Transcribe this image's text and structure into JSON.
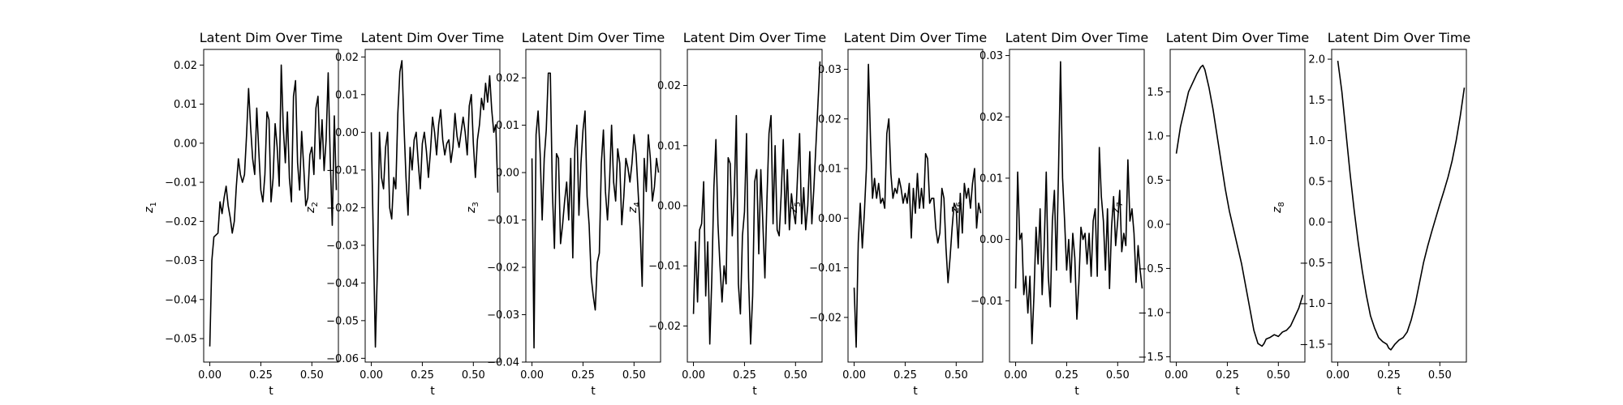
{
  "chart_data": [
    {
      "type": "line",
      "title": "Latent Dim Over Time",
      "xlabel": "t",
      "ylabel": "z_1",
      "ylabel_base": "z",
      "ylabel_sub": "1",
      "xlim": [
        -0.03,
        0.63
      ],
      "ylim": [
        -0.056,
        0.024
      ],
      "xticks": [
        0.0,
        0.25,
        0.5
      ],
      "xtick_labels": [
        "0.00",
        "0.25",
        "0.50"
      ],
      "yticks": [
        -0.05,
        -0.04,
        -0.03,
        -0.02,
        -0.01,
        0.0,
        0.01,
        0.02
      ],
      "ytick_labels": [
        "−0.05",
        "−0.04",
        "−0.03",
        "−0.02",
        "−0.01",
        "0.00",
        "0.01",
        "0.02"
      ],
      "grid": false,
      "color": "#000000",
      "x": [
        0.0,
        0.01,
        0.02,
        0.04,
        0.05,
        0.06,
        0.07,
        0.08,
        0.09,
        0.1,
        0.11,
        0.12,
        0.13,
        0.14,
        0.15,
        0.16,
        0.17,
        0.18,
        0.19,
        0.2,
        0.21,
        0.22,
        0.23,
        0.24,
        0.25,
        0.26,
        0.27,
        0.28,
        0.29,
        0.3,
        0.31,
        0.32,
        0.33,
        0.34,
        0.35,
        0.36,
        0.37,
        0.38,
        0.39,
        0.4,
        0.41,
        0.42,
        0.43,
        0.44,
        0.45,
        0.46,
        0.47,
        0.48,
        0.49,
        0.5,
        0.51,
        0.52,
        0.53,
        0.54,
        0.55,
        0.56,
        0.57,
        0.58,
        0.59,
        0.6,
        0.61,
        0.62
      ],
      "y": [
        -0.052,
        -0.03,
        -0.024,
        -0.023,
        -0.015,
        -0.018,
        -0.014,
        -0.011,
        -0.016,
        -0.019,
        -0.023,
        -0.02,
        -0.011,
        -0.004,
        -0.008,
        -0.01,
        -0.008,
        0.002,
        0.014,
        0.004,
        -0.004,
        -0.008,
        0.009,
        -0.002,
        -0.012,
        -0.015,
        -0.008,
        0.008,
        0.006,
        -0.015,
        -0.009,
        0.005,
        -0.001,
        -0.011,
        0.02,
        0.004,
        -0.005,
        0.008,
        -0.009,
        -0.015,
        0.012,
        0.016,
        -0.005,
        -0.012,
        0.003,
        -0.006,
        -0.016,
        -0.014,
        -0.003,
        -0.001,
        -0.008,
        0.009,
        0.012,
        -0.004,
        0.006,
        -0.007,
        0.001,
        0.018,
        -0.004,
        -0.021,
        0.007,
        -0.012
      ]
    },
    {
      "type": "line",
      "title": "Latent Dim Over Time",
      "xlabel": "t",
      "ylabel": "z_2",
      "ylabel_base": "z",
      "ylabel_sub": "2",
      "xlim": [
        -0.03,
        0.63
      ],
      "ylim": [
        -0.061,
        0.022
      ],
      "xticks": [
        0.0,
        0.25,
        0.5
      ],
      "xtick_labels": [
        "0.00",
        "0.25",
        "0.50"
      ],
      "yticks": [
        -0.06,
        -0.05,
        -0.04,
        -0.03,
        -0.02,
        -0.01,
        0.0,
        0.01,
        0.02
      ],
      "ytick_labels": [
        "−0.06",
        "−0.05",
        "−0.04",
        "−0.03",
        "−0.02",
        "−0.01",
        "0.00",
        "0.01",
        "0.02"
      ],
      "grid": false,
      "color": "#000000",
      "x": [
        0.0,
        0.02,
        0.03,
        0.04,
        0.05,
        0.06,
        0.07,
        0.08,
        0.09,
        0.1,
        0.11,
        0.12,
        0.13,
        0.14,
        0.15,
        0.16,
        0.17,
        0.18,
        0.19,
        0.2,
        0.21,
        0.22,
        0.23,
        0.24,
        0.25,
        0.26,
        0.27,
        0.28,
        0.29,
        0.3,
        0.31,
        0.32,
        0.33,
        0.34,
        0.35,
        0.36,
        0.37,
        0.38,
        0.39,
        0.4,
        0.41,
        0.42,
        0.43,
        0.44,
        0.45,
        0.46,
        0.47,
        0.48,
        0.49,
        0.5,
        0.51,
        0.52,
        0.53,
        0.54,
        0.55,
        0.56,
        0.57,
        0.58,
        0.59,
        0.6,
        0.61,
        0.62
      ],
      "y": [
        0.0,
        -0.057,
        -0.036,
        0.0,
        -0.012,
        -0.015,
        -0.004,
        0.0,
        -0.02,
        -0.023,
        -0.012,
        -0.015,
        0.005,
        0.016,
        0.019,
        0.002,
        -0.012,
        -0.022,
        -0.004,
        -0.01,
        -0.002,
        0.0,
        -0.008,
        -0.015,
        -0.003,
        0.0,
        -0.005,
        -0.012,
        -0.005,
        0.004,
        0.0,
        -0.006,
        0.002,
        0.006,
        -0.002,
        -0.006,
        -0.003,
        -0.002,
        -0.008,
        -0.004,
        0.005,
        -0.001,
        -0.004,
        0.0,
        0.004,
        0.0,
        -0.006,
        0.007,
        0.01,
        -0.003,
        -0.012,
        -0.002,
        0.002,
        0.009,
        0.006,
        0.013,
        0.008,
        0.015,
        0.006,
        0.0,
        0.002,
        -0.016
      ]
    },
    {
      "type": "line",
      "title": "Latent Dim Over Time",
      "xlabel": "t",
      "ylabel": "z_3",
      "ylabel_base": "z",
      "ylabel_sub": "3",
      "xlim": [
        -0.03,
        0.63
      ],
      "ylim": [
        -0.04,
        0.026
      ],
      "xticks": [
        0.0,
        0.25,
        0.5
      ],
      "xtick_labels": [
        "0.00",
        "0.25",
        "0.50"
      ],
      "yticks": [
        -0.04,
        -0.03,
        -0.02,
        -0.01,
        0.0,
        0.01,
        0.02
      ],
      "ytick_labels": [
        "−0.04",
        "−0.03",
        "−0.02",
        "−0.01",
        "0.00",
        "0.01",
        "0.02"
      ],
      "grid": false,
      "color": "#000000",
      "x": [
        0.0,
        0.01,
        0.02,
        0.03,
        0.04,
        0.05,
        0.06,
        0.07,
        0.08,
        0.09,
        0.1,
        0.11,
        0.12,
        0.13,
        0.14,
        0.15,
        0.16,
        0.17,
        0.18,
        0.19,
        0.2,
        0.21,
        0.22,
        0.23,
        0.24,
        0.25,
        0.26,
        0.27,
        0.28,
        0.29,
        0.3,
        0.31,
        0.32,
        0.33,
        0.34,
        0.35,
        0.36,
        0.37,
        0.38,
        0.39,
        0.4,
        0.41,
        0.42,
        0.43,
        0.44,
        0.45,
        0.46,
        0.47,
        0.48,
        0.49,
        0.5,
        0.51,
        0.52,
        0.53,
        0.54,
        0.55,
        0.56,
        0.57,
        0.58,
        0.59,
        0.6,
        0.61,
        0.62
      ],
      "y": [
        0.003,
        -0.037,
        0.008,
        0.013,
        0.004,
        -0.01,
        0.003,
        0.009,
        0.021,
        0.021,
        -0.004,
        -0.016,
        0.004,
        0.003,
        -0.015,
        -0.011,
        -0.006,
        -0.002,
        -0.01,
        0.003,
        -0.018,
        0.005,
        0.01,
        -0.009,
        0.002,
        0.009,
        0.013,
        -0.005,
        -0.011,
        -0.022,
        -0.026,
        -0.029,
        -0.019,
        -0.017,
        0.002,
        0.009,
        -0.004,
        -0.01,
        -0.002,
        0.01,
        -0.002,
        -0.006,
        0.005,
        0.002,
        -0.011,
        -0.005,
        0.003,
        0.001,
        -0.002,
        0.002,
        0.008,
        0.004,
        -0.004,
        -0.012,
        -0.024,
        0.003,
        -0.004,
        0.008,
        0.003,
        -0.006,
        -0.003,
        0.003,
        0.0
      ]
    },
    {
      "type": "line",
      "title": "Latent Dim Over Time",
      "xlabel": "t",
      "ylabel": "z_4",
      "ylabel_base": "z",
      "ylabel_sub": "4",
      "xlim": [
        -0.03,
        0.63
      ],
      "ylim": [
        -0.026,
        0.026
      ],
      "xticks": [
        0.0,
        0.25,
        0.5
      ],
      "xtick_labels": [
        "0.00",
        "0.25",
        "0.50"
      ],
      "yticks": [
        -0.02,
        -0.01,
        0.0,
        0.01,
        0.02
      ],
      "ytick_labels": [
        "−0.02",
        "−0.01",
        "0.00",
        "0.01",
        "0.02"
      ],
      "grid": false,
      "color": "#000000",
      "x": [
        0.0,
        0.01,
        0.02,
        0.03,
        0.04,
        0.05,
        0.06,
        0.07,
        0.08,
        0.09,
        0.1,
        0.11,
        0.12,
        0.13,
        0.14,
        0.15,
        0.16,
        0.17,
        0.18,
        0.19,
        0.2,
        0.21,
        0.22,
        0.23,
        0.24,
        0.25,
        0.26,
        0.27,
        0.28,
        0.29,
        0.3,
        0.31,
        0.32,
        0.33,
        0.34,
        0.35,
        0.36,
        0.37,
        0.38,
        0.39,
        0.4,
        0.41,
        0.42,
        0.43,
        0.44,
        0.45,
        0.46,
        0.47,
        0.48,
        0.49,
        0.5,
        0.51,
        0.52,
        0.53,
        0.54,
        0.55,
        0.56,
        0.57,
        0.58,
        0.59,
        0.6,
        0.61,
        0.62
      ],
      "y": [
        -0.018,
        -0.006,
        -0.016,
        -0.004,
        -0.003,
        0.004,
        -0.015,
        -0.006,
        -0.023,
        -0.012,
        0.003,
        0.011,
        -0.003,
        -0.01,
        -0.016,
        -0.01,
        -0.013,
        0.008,
        0.007,
        -0.005,
        0.002,
        0.015,
        -0.013,
        -0.018,
        -0.005,
        -0.001,
        0.012,
        -0.012,
        -0.023,
        -0.015,
        0.004,
        0.006,
        -0.008,
        0.006,
        -0.003,
        -0.012,
        0.001,
        0.012,
        0.015,
        -0.003,
        0.01,
        -0.004,
        -0.005,
        0.002,
        0.011,
        -0.003,
        0.006,
        -0.004,
        0.002,
        -0.001,
        -0.003,
        0.005,
        0.012,
        -0.003,
        0.003,
        -0.004,
        0.0,
        0.009,
        -0.003,
        0.003,
        0.01,
        0.017,
        0.024
      ]
    },
    {
      "type": "line",
      "title": "Latent Dim Over Time",
      "xlabel": "t",
      "ylabel": "z_5",
      "ylabel_base": "z",
      "ylabel_sub": "5",
      "xlim": [
        -0.03,
        0.63
      ],
      "ylim": [
        -0.029,
        0.034
      ],
      "xticks": [
        0.0,
        0.25,
        0.5
      ],
      "xtick_labels": [
        "0.00",
        "0.25",
        "0.50"
      ],
      "yticks": [
        -0.02,
        -0.01,
        0.0,
        0.01,
        0.02,
        0.03
      ],
      "ytick_labels": [
        "−0.02",
        "−0.01",
        "0.00",
        "0.01",
        "0.02",
        "0.03"
      ],
      "grid": false,
      "color": "#000000",
      "x": [
        0.0,
        0.01,
        0.02,
        0.03,
        0.04,
        0.05,
        0.06,
        0.07,
        0.08,
        0.09,
        0.1,
        0.11,
        0.12,
        0.13,
        0.14,
        0.15,
        0.16,
        0.17,
        0.18,
        0.19,
        0.2,
        0.21,
        0.22,
        0.23,
        0.24,
        0.25,
        0.26,
        0.27,
        0.28,
        0.29,
        0.3,
        0.31,
        0.32,
        0.33,
        0.34,
        0.35,
        0.36,
        0.37,
        0.38,
        0.39,
        0.4,
        0.41,
        0.42,
        0.43,
        0.44,
        0.45,
        0.46,
        0.47,
        0.48,
        0.49,
        0.5,
        0.51,
        0.52,
        0.53,
        0.54,
        0.55,
        0.56,
        0.57,
        0.58,
        0.59,
        0.6,
        0.61,
        0.62
      ],
      "y": [
        -0.014,
        -0.026,
        -0.005,
        0.003,
        -0.006,
        0.001,
        0.01,
        0.031,
        0.016,
        0.004,
        0.008,
        0.004,
        0.007,
        0.003,
        0.004,
        0.002,
        0.017,
        0.02,
        0.009,
        0.004,
        0.006,
        0.005,
        0.008,
        0.006,
        0.003,
        0.005,
        0.003,
        0.007,
        -0.004,
        0.006,
        0.001,
        0.009,
        0.002,
        0.006,
        0.002,
        0.013,
        0.012,
        0.003,
        0.004,
        0.004,
        -0.002,
        -0.005,
        -0.003,
        0.006,
        0.004,
        -0.006,
        -0.013,
        -0.008,
        -0.002,
        0.003,
        0.002,
        -0.006,
        0.005,
        -0.003,
        0.007,
        0.004,
        0.006,
        0.002,
        0.007,
        0.01,
        -0.002,
        0.003,
        0.001
      ]
    },
    {
      "type": "line",
      "title": "Latent Dim Over Time",
      "xlabel": "t",
      "ylabel": "z_6",
      "ylabel_base": "z",
      "ylabel_sub": "6",
      "xlim": [
        -0.03,
        0.63
      ],
      "ylim": [
        -0.02,
        0.031
      ],
      "xticks": [
        0.0,
        0.25,
        0.5
      ],
      "xtick_labels": [
        "0.00",
        "0.25",
        "0.50"
      ],
      "yticks": [
        -0.01,
        0.0,
        0.01,
        0.02,
        0.03
      ],
      "ytick_labels": [
        "−0.01",
        "0.00",
        "0.01",
        "0.02",
        "0.03"
      ],
      "grid": false,
      "color": "#000000",
      "x": [
        0.0,
        0.01,
        0.02,
        0.03,
        0.04,
        0.05,
        0.06,
        0.07,
        0.08,
        0.09,
        0.1,
        0.11,
        0.12,
        0.13,
        0.14,
        0.15,
        0.16,
        0.17,
        0.18,
        0.19,
        0.2,
        0.21,
        0.22,
        0.23,
        0.24,
        0.25,
        0.26,
        0.27,
        0.28,
        0.29,
        0.3,
        0.31,
        0.32,
        0.33,
        0.34,
        0.35,
        0.36,
        0.37,
        0.38,
        0.39,
        0.4,
        0.41,
        0.42,
        0.43,
        0.44,
        0.45,
        0.46,
        0.47,
        0.48,
        0.49,
        0.5,
        0.51,
        0.52,
        0.53,
        0.54,
        0.55,
        0.56,
        0.57,
        0.58,
        0.59,
        0.6,
        0.61,
        0.62
      ],
      "y": [
        -0.008,
        0.011,
        0.0,
        0.001,
        -0.009,
        -0.006,
        -0.012,
        -0.006,
        -0.017,
        -0.009,
        0.002,
        -0.004,
        0.005,
        -0.009,
        -0.001,
        0.011,
        -0.006,
        -0.011,
        0.003,
        0.008,
        -0.005,
        0.011,
        0.029,
        0.01,
        0.003,
        -0.005,
        0.0,
        -0.007,
        0.001,
        -0.003,
        -0.013,
        -0.007,
        0.002,
        0.0,
        0.001,
        -0.004,
        0.001,
        -0.006,
        0.003,
        0.005,
        -0.006,
        0.015,
        0.007,
        0.003,
        -0.005,
        0.005,
        -0.008,
        0.002,
        0.007,
        -0.001,
        0.003,
        0.008,
        -0.002,
        0.001,
        -0.001,
        0.013,
        0.003,
        0.005,
        0.001,
        -0.007,
        -0.001,
        -0.005,
        -0.008
      ]
    },
    {
      "type": "line",
      "title": "Latent Dim Over Time",
      "xlabel": "t",
      "ylabel": "z_7",
      "ylabel_base": "z",
      "ylabel_sub": "7",
      "xlim": [
        -0.03,
        0.63
      ],
      "ylim": [
        -1.56,
        1.98
      ],
      "xticks": [
        0.0,
        0.25,
        0.5
      ],
      "xtick_labels": [
        "0.00",
        "0.25",
        "0.50"
      ],
      "yticks": [
        -1.5,
        -1.0,
        -0.5,
        0.0,
        0.5,
        1.0,
        1.5
      ],
      "ytick_labels": [
        "−1.5",
        "−1.0",
        "−0.5",
        "0.0",
        "0.5",
        "1.0",
        "1.5"
      ],
      "grid": false,
      "color": "#000000",
      "x": [
        0.0,
        0.02,
        0.04,
        0.06,
        0.08,
        0.1,
        0.12,
        0.13,
        0.14,
        0.16,
        0.18,
        0.2,
        0.22,
        0.24,
        0.26,
        0.28,
        0.3,
        0.32,
        0.34,
        0.36,
        0.38,
        0.4,
        0.42,
        0.43,
        0.44,
        0.46,
        0.48,
        0.5,
        0.52,
        0.54,
        0.56,
        0.58,
        0.6,
        0.62
      ],
      "y": [
        0.8,
        1.1,
        1.3,
        1.5,
        1.6,
        1.7,
        1.78,
        1.8,
        1.75,
        1.55,
        1.3,
        1.0,
        0.7,
        0.4,
        0.15,
        -0.05,
        -0.25,
        -0.45,
        -0.7,
        -0.95,
        -1.2,
        -1.35,
        -1.38,
        -1.35,
        -1.3,
        -1.28,
        -1.25,
        -1.27,
        -1.22,
        -1.2,
        -1.15,
        -1.05,
        -0.95,
        -0.8
      ]
    },
    {
      "type": "line",
      "title": "Latent Dim Over Time",
      "xlabel": "t",
      "ylabel": "z_8",
      "ylabel_base": "z",
      "ylabel_sub": "8",
      "xlim": [
        -0.03,
        0.63
      ],
      "ylim": [
        -1.72,
        2.12
      ],
      "xticks": [
        0.0,
        0.25,
        0.5
      ],
      "xtick_labels": [
        "0.00",
        "0.25",
        "0.50"
      ],
      "yticks": [
        -1.5,
        -1.0,
        -0.5,
        0.0,
        0.5,
        1.0,
        1.5,
        2.0
      ],
      "ytick_labels": [
        "−1.5",
        "−1.0",
        "−0.5",
        "0.0",
        "0.5",
        "1.0",
        "1.5",
        "2.0"
      ],
      "grid": false,
      "color": "#000000",
      "x": [
        0.0,
        0.02,
        0.04,
        0.06,
        0.08,
        0.1,
        0.12,
        0.14,
        0.16,
        0.18,
        0.2,
        0.22,
        0.24,
        0.25,
        0.26,
        0.28,
        0.3,
        0.32,
        0.34,
        0.36,
        0.38,
        0.4,
        0.42,
        0.44,
        0.46,
        0.48,
        0.5,
        0.52,
        0.54,
        0.56,
        0.58,
        0.6,
        0.62
      ],
      "y": [
        1.98,
        1.6,
        1.1,
        0.6,
        0.15,
        -0.25,
        -0.6,
        -0.9,
        -1.15,
        -1.3,
        -1.42,
        -1.47,
        -1.5,
        -1.55,
        -1.57,
        -1.5,
        -1.45,
        -1.42,
        -1.35,
        -1.2,
        -1.0,
        -0.75,
        -0.5,
        -0.3,
        -0.12,
        0.05,
        0.22,
        0.38,
        0.55,
        0.75,
        1.0,
        1.3,
        1.65
      ]
    }
  ]
}
